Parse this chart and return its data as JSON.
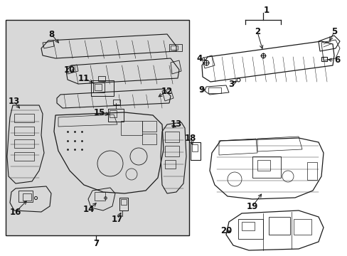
{
  "bg_color": "#ffffff",
  "box_bg": "#d8d8d8",
  "line_color": "#1a1a1a",
  "figsize": [
    4.89,
    3.6
  ],
  "dpi": 100,
  "font_size": 8.5
}
